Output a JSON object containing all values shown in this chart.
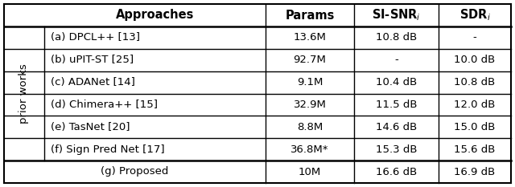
{
  "header": [
    "Approaches",
    "Params",
    "SI-SNR",
    "SDR"
  ],
  "rows_prior": [
    [
      "(a) DPCL++ [13]",
      "13.6M",
      "10.8 dB",
      "-"
    ],
    [
      "(b) uPIT-ST [25]",
      "92.7M",
      "-",
      "10.0 dB"
    ],
    [
      "(c) ADANet [14]",
      "9.1M",
      "10.4 dB",
      "10.8 dB"
    ],
    [
      "(d) Chimera++ [15]",
      "32.9M",
      "11.5 dB",
      "12.0 dB"
    ],
    [
      "(e) TasNet [20]",
      "8.8M",
      "14.6 dB",
      "15.0 dB"
    ],
    [
      "(f) Sign Pred Net [17]",
      "36.8M*",
      "15.3 dB",
      "15.6 dB"
    ]
  ],
  "row_proposed": [
    "(g) Proposed",
    "10M",
    "16.6 dB",
    "16.9 dB"
  ],
  "prior_label": "prior works",
  "bg_color": "#ffffff",
  "line_color": "#000000",
  "font_size": 9.5,
  "header_font_size": 10.5
}
